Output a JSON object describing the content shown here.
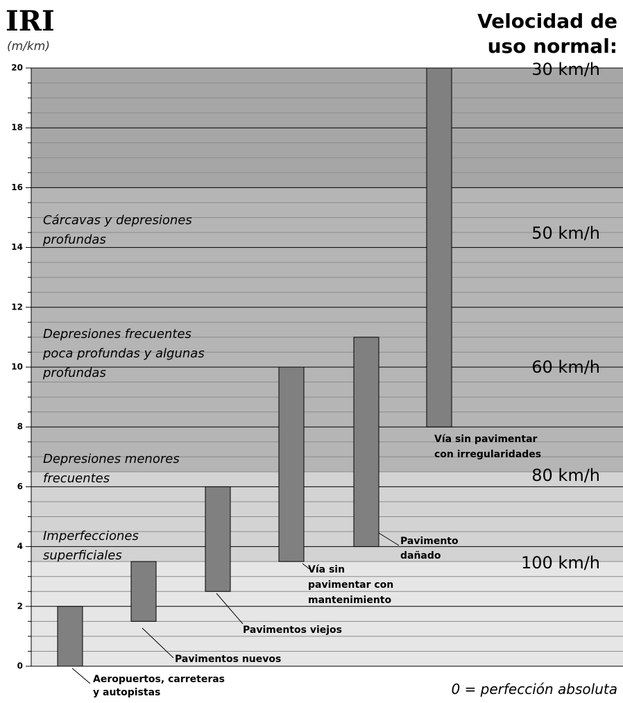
{
  "chart_data": {
    "type": "range_bar",
    "title": "IRI",
    "y_unit": "(m/km)",
    "right_title": [
      "Velocidad de",
      "uso normal:"
    ],
    "footnote": "0 = perfección absoluta",
    "categories": [
      [
        "Aeropuertos, carreteras",
        "y autopistas"
      ],
      [
        "Pavimentos nuevos"
      ],
      [
        "Pavimentos viejos"
      ],
      [
        "Vía sin",
        "pavimentar  con",
        "mantenimiento"
      ],
      [
        "Pavimento",
        "dañado"
      ],
      [
        "Vía sin pavimentar",
        "con irregularidades"
      ]
    ],
    "series": [
      {
        "color": "#808080",
        "low": [
          0,
          1.5,
          2.5,
          3.5,
          4,
          8
        ],
        "high": [
          2,
          3.5,
          6,
          10,
          11,
          20
        ]
      }
    ],
    "zones": [
      [
        "Cárcavas y depresiones",
        "profundas"
      ],
      [
        "Depresiones frecuentes",
        "poca profundas y algunas",
        "profundas"
      ],
      [
        "Depresiones menores",
        "frecuentes"
      ],
      [
        "Imperfecciones",
        "superficiales"
      ]
    ],
    "speeds": [
      "30 km/h",
      "50 km/h",
      "60 km/h",
      "80 km/h",
      "100 km/h"
    ],
    "bands": [
      {
        "from": 0,
        "to": 3.5,
        "color": "#e6e6e6"
      },
      {
        "from": 3.5,
        "to": 6.5,
        "color": "#d3d3d3"
      },
      {
        "from": 6.5,
        "to": 16,
        "color": "#b5b5b5"
      },
      {
        "from": 16,
        "to": 20,
        "color": "#a6a6a6"
      }
    ],
    "ylim": [
      0,
      20
    ],
    "yticks": [
      0,
      2,
      4,
      6,
      8,
      10,
      12,
      14,
      16,
      18,
      20
    ],
    "yminorticks": [
      0.5,
      1,
      1.5,
      2.5,
      3,
      3.5,
      4.5,
      5,
      5.5,
      6.5,
      7,
      7.5,
      8.5,
      9,
      9.5,
      10.5,
      11,
      11.5,
      12.5,
      13,
      13.5,
      14.5,
      15,
      15.5,
      16.5,
      17,
      17.5,
      18.5,
      19,
      19.5
    ],
    "grid": true
  }
}
